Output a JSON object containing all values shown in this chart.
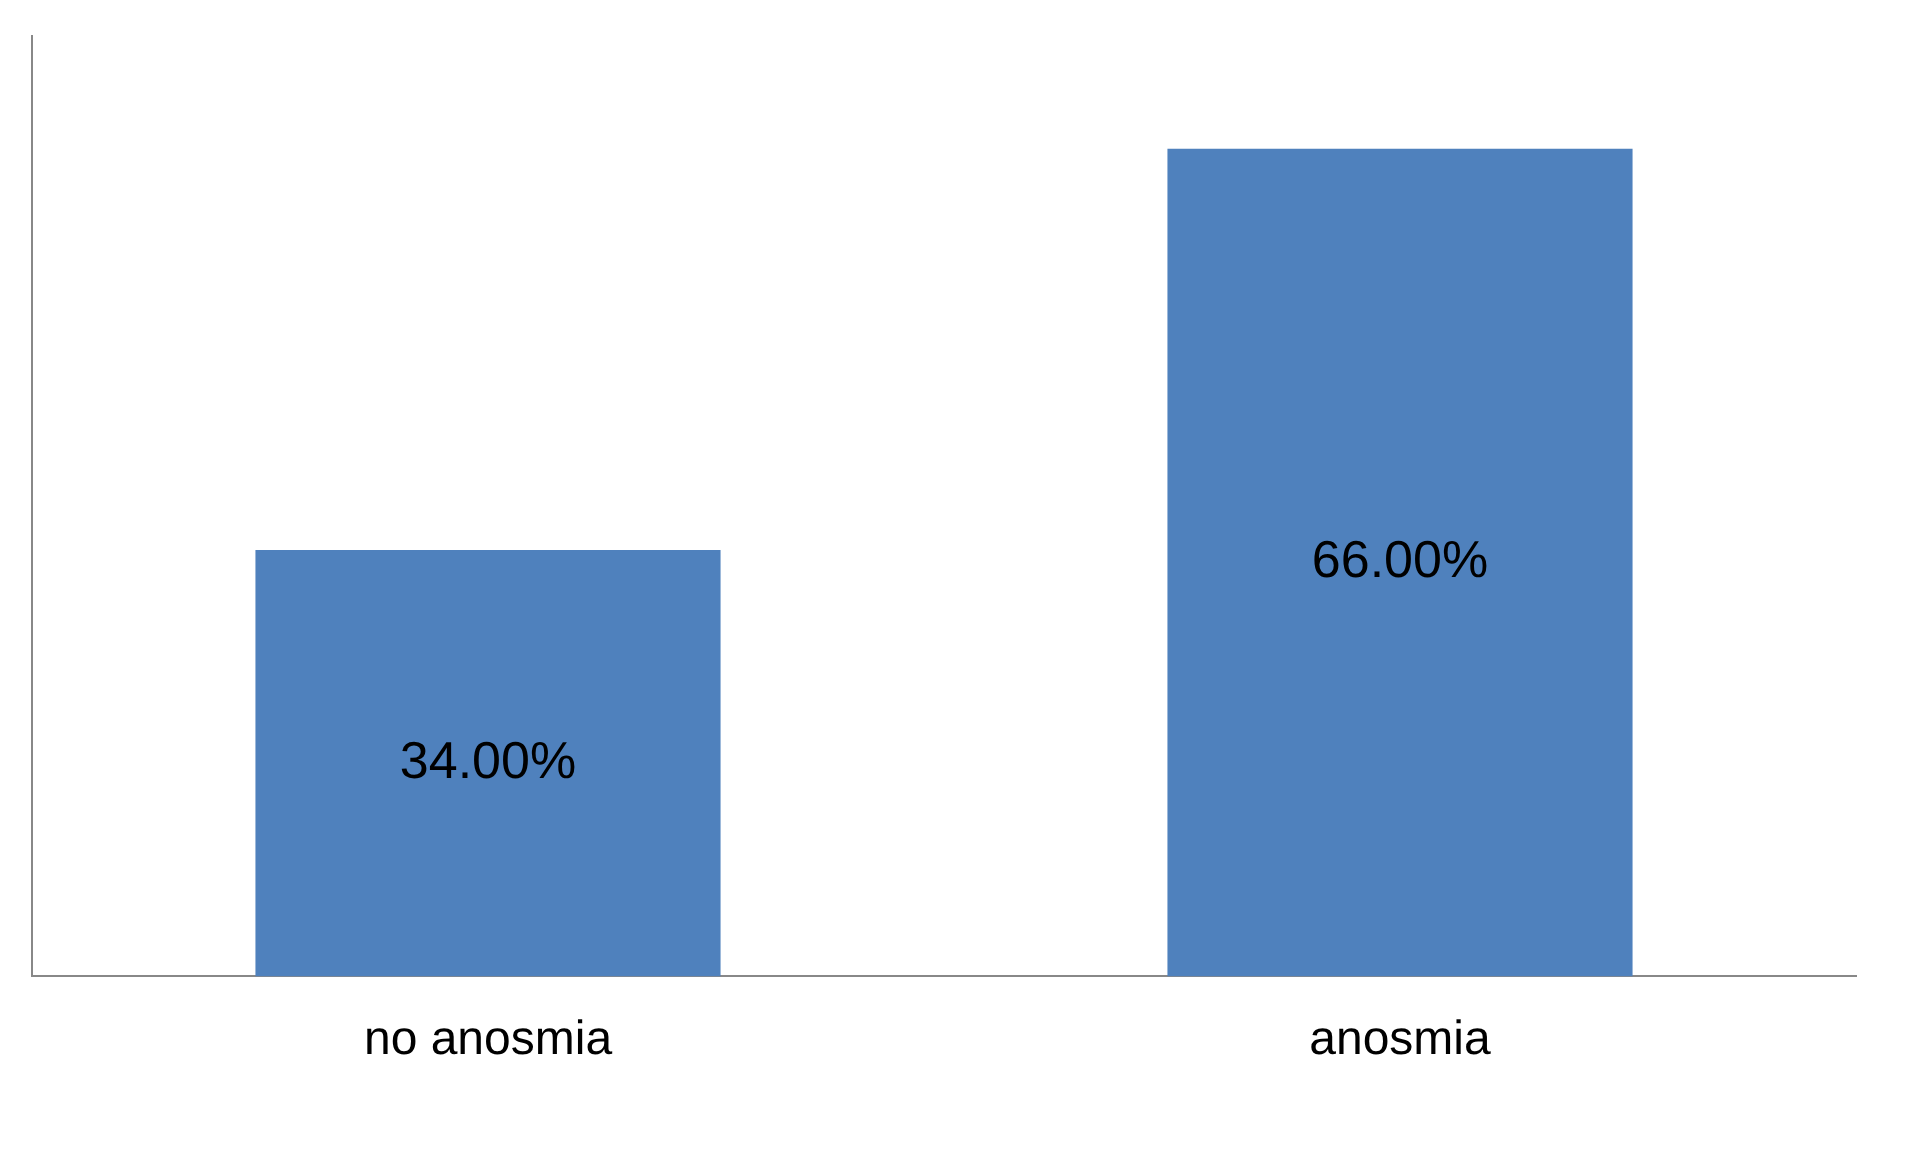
{
  "chart_data": {
    "type": "bar",
    "categories": [
      "no anosmia",
      "anosmia"
    ],
    "values": [
      34,
      66
    ],
    "value_labels": [
      "34.00%",
      "66.00%"
    ],
    "color": "#4f81bd",
    "ylim": [
      0,
      75
    ],
    "tick_labels": "x",
    "grid": false,
    "legend": false
  }
}
